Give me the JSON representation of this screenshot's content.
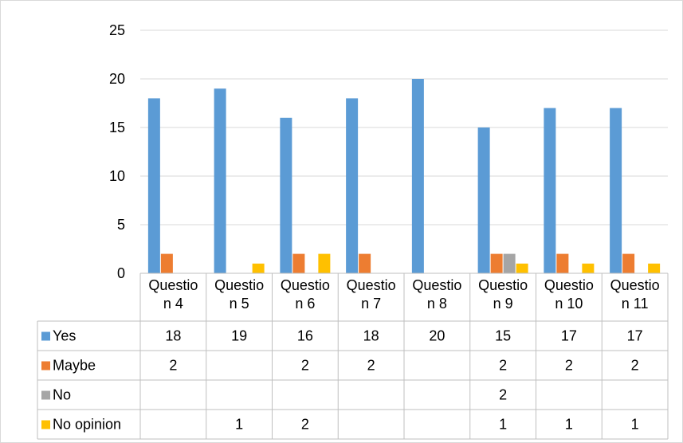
{
  "chart_data": {
    "type": "bar",
    "categories": [
      [
        "Questio",
        "n 4"
      ],
      [
        "Questio",
        "n 5"
      ],
      [
        "Questio",
        "n 6"
      ],
      [
        "Questio",
        "n 7"
      ],
      [
        "Questio",
        "n 8"
      ],
      [
        "Questio",
        "n 9"
      ],
      [
        "Questio",
        "n 10"
      ],
      [
        "Questio",
        "n 11"
      ]
    ],
    "series": [
      {
        "name": "Yes",
        "color": "#5b9bd5",
        "values": [
          18,
          19,
          16,
          18,
          20,
          15,
          17,
          17
        ]
      },
      {
        "name": "Maybe",
        "color": "#ed7d31",
        "values": [
          2,
          null,
          2,
          2,
          null,
          2,
          2,
          2
        ]
      },
      {
        "name": "No",
        "color": "#a5a5a5",
        "values": [
          null,
          null,
          null,
          null,
          null,
          2,
          null,
          null
        ]
      },
      {
        "name": "No opinion",
        "color": "#ffc000",
        "values": [
          null,
          1,
          2,
          null,
          null,
          1,
          1,
          1
        ]
      }
    ],
    "ylim": [
      0,
      25
    ],
    "yticks": [
      0,
      5,
      10,
      15,
      20,
      25
    ],
    "grid": true,
    "legend": "data-table",
    "title": "",
    "xlabel": "",
    "ylabel": ""
  }
}
